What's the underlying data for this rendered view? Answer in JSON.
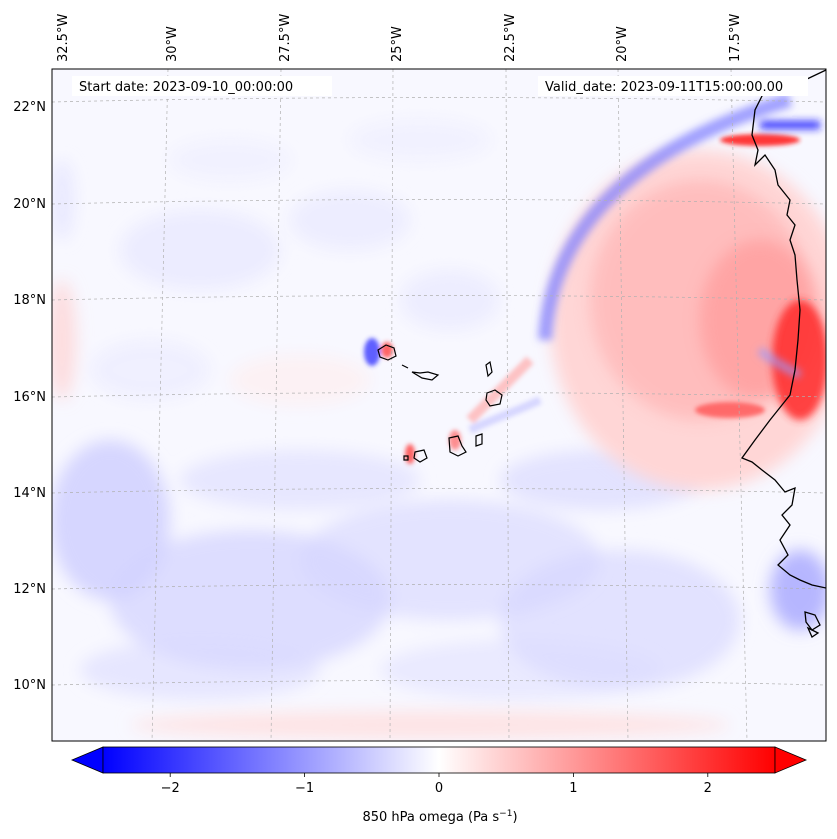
{
  "map": {
    "start_label": "Start date: 2023-09-10_00:00:00",
    "valid_label": "Valid_date: 2023-09-11T15:00:00.00",
    "lon_labels": [
      "32.5°W",
      "30°W",
      "27.5°W",
      "25°W",
      "22.5°W",
      "20°W",
      "17.5°W"
    ],
    "lat_labels": [
      "22°N",
      "20°N",
      "18°N",
      "16°N",
      "14°N",
      "12°N",
      "10°N"
    ],
    "variable": "850 hPa omega"
  },
  "colorbar": {
    "label_prefix": "850 hPa omega (Pa s",
    "label_exponent": "−1",
    "label_suffix": ")",
    "tick_labels": [
      "−2",
      "−1",
      "0",
      "1",
      "2"
    ],
    "ticks": [
      -2,
      -1,
      0,
      1,
      2
    ],
    "vmin": -2.5,
    "vmax": 2.5,
    "colormap": "bwr",
    "extend": "both",
    "min_color": "#0000ff",
    "mid_color": "#ffffff",
    "max_color": "#ff0000"
  },
  "colors": {
    "coastline": "#000000",
    "gridline": "#b0b0b0"
  }
}
